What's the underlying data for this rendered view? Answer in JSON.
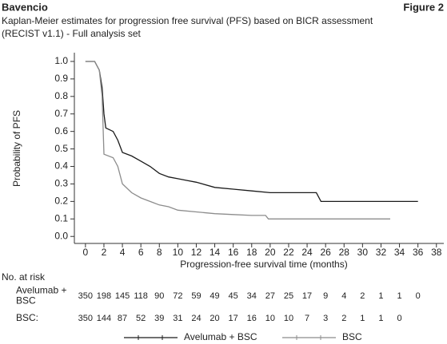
{
  "chart_data": {
    "type": "line",
    "brand": "Bavencio",
    "figure_label": "Figure 2",
    "title": [
      "Kaplan-Meier estimates for progression free survival (PFS) based on BICR assessment",
      "(RECIST v1.1) - Full analysis set"
    ],
    "x_label": "Progression-free survival time (months)",
    "y_label": "Probability of PFS",
    "xlim": [
      -1.2,
      38.8
    ],
    "ylim": [
      -0.04,
      1.05
    ],
    "xticks": [
      0,
      2,
      4,
      6,
      8,
      10,
      12,
      14,
      16,
      18,
      20,
      22,
      24,
      26,
      28,
      30,
      32,
      34,
      36,
      38
    ],
    "yticks": [
      {
        "value": 0,
        "label": "0.0"
      },
      0.1,
      0.2,
      0.3,
      0.4,
      0.5,
      0.6,
      0.7,
      0.8,
      0.9,
      {
        "value": 1,
        "label": "1.0"
      }
    ],
    "series": [
      {
        "name": "Avelumab + BSC",
        "color": "#1a1a1a",
        "x": [
          0,
          1,
          1.5,
          1.8,
          2,
          2.2,
          3,
          3.5,
          4,
          5,
          6,
          7,
          8,
          9,
          10,
          11,
          12,
          14,
          16,
          18,
          20,
          22,
          25,
          25.5,
          30,
          36
        ],
        "values": [
          1.0,
          1.0,
          0.95,
          0.85,
          0.7,
          0.62,
          0.6,
          0.55,
          0.48,
          0.46,
          0.43,
          0.4,
          0.36,
          0.34,
          0.33,
          0.32,
          0.31,
          0.28,
          0.27,
          0.26,
          0.25,
          0.25,
          0.25,
          0.2,
          0.2,
          0.2
        ]
      },
      {
        "name": "BSC",
        "color": "#8c8c8c",
        "x": [
          0,
          1,
          1.5,
          1.8,
          2,
          3,
          3.5,
          4,
          5,
          6,
          7,
          8,
          9,
          10,
          12,
          14,
          16,
          18,
          19.5,
          19.8,
          25,
          33
        ],
        "values": [
          1.0,
          1.0,
          0.95,
          0.8,
          0.47,
          0.45,
          0.4,
          0.3,
          0.25,
          0.22,
          0.2,
          0.18,
          0.17,
          0.15,
          0.14,
          0.13,
          0.125,
          0.12,
          0.12,
          0.1,
          0.1,
          0.1
        ]
      }
    ],
    "risk_table": {
      "title": "No. at risk",
      "rows": [
        {
          "label": [
            "Avelumab +",
            "BSC"
          ],
          "values": [
            350,
            198,
            145,
            118,
            90,
            72,
            59,
            49,
            45,
            34,
            27,
            25,
            17,
            9,
            4,
            2,
            1,
            1,
            0
          ]
        },
        {
          "label": [
            "BSC:"
          ],
          "values": [
            350,
            144,
            87,
            52,
            39,
            31,
            24,
            20,
            17,
            16,
            10,
            10,
            7,
            3,
            2,
            1,
            1,
            0
          ]
        }
      ]
    }
  }
}
